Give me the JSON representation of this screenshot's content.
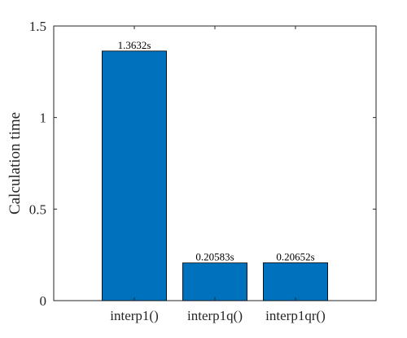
{
  "chart_data": {
    "type": "bar",
    "title": "",
    "xlabel": "",
    "ylabel": "Calculation time",
    "categories": [
      "interp1()",
      "interp1q()",
      "interp1qr()"
    ],
    "values": [
      1.3632,
      0.20583,
      0.20652
    ],
    "data_labels": [
      "1.3632s",
      "0.20583s",
      "0.20652s"
    ],
    "ylim": [
      0,
      1.5
    ],
    "yticks": [
      0,
      0.5,
      1,
      1.5
    ],
    "ytick_labels": [
      "0",
      "0.5",
      "1",
      "1.5"
    ],
    "grid": false,
    "legend": "none",
    "bar_color": "#0072BD",
    "axis_color": "#262626"
  }
}
